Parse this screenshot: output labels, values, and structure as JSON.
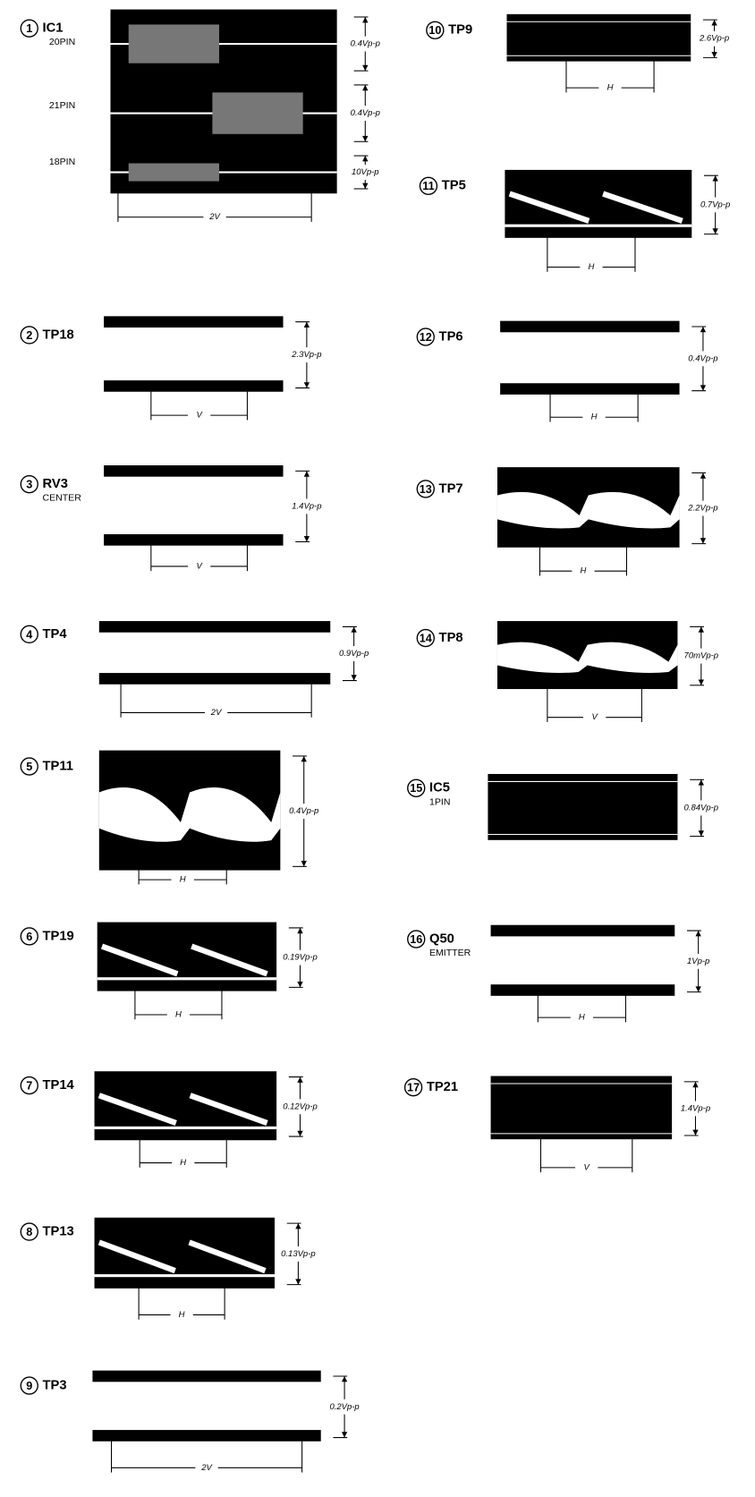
{
  "panels": [
    {
      "number": "1",
      "label": "IC1",
      "channels": [
        {
          "pin": "20PIN",
          "amplitude": "0.4Vp-p"
        },
        {
          "pin": "21PIN",
          "amplitude": "0.4Vp-p"
        },
        {
          "pin": "18PIN",
          "amplitude": "10Vp-p"
        }
      ],
      "span": "2V"
    },
    {
      "number": "2",
      "label": "TP18",
      "amplitude": "2.3Vp-p",
      "span": "V"
    },
    {
      "number": "3",
      "label": "RV3",
      "sublabel": "CENTER",
      "amplitude": "1.4Vp-p",
      "span": "V"
    },
    {
      "number": "4",
      "label": "TP4",
      "amplitude": "0.9Vp-p",
      "span": "2V"
    },
    {
      "number": "5",
      "label": "TP11",
      "amplitude": "0.4Vp-p",
      "span": "H"
    },
    {
      "number": "6",
      "label": "TP19",
      "amplitude": "0.19Vp-p",
      "span": "H"
    },
    {
      "number": "7",
      "label": "TP14",
      "amplitude": "0.12Vp-p",
      "span": "H"
    },
    {
      "number": "8",
      "label": "TP13",
      "amplitude": "0.13Vp-p",
      "span": "H"
    },
    {
      "number": "9",
      "label": "TP3",
      "amplitude": "0.2Vp-p",
      "span": "2V"
    },
    {
      "number": "10",
      "label": "TP9",
      "amplitude": "2.6Vp-p",
      "span": "H"
    },
    {
      "number": "11",
      "label": "TP5",
      "amplitude": "0.7Vp-p",
      "span": "H"
    },
    {
      "number": "12",
      "label": "TP6",
      "amplitude": "0.4Vp-p",
      "span": "H"
    },
    {
      "number": "13",
      "label": "TP7",
      "amplitude": "2.2Vp-p",
      "span": "H"
    },
    {
      "number": "14",
      "label": "TP8",
      "amplitude": "70mVp-p",
      "span": "V"
    },
    {
      "number": "15",
      "label": "IC5",
      "sublabel": "1PIN",
      "amplitude": "0.84Vp-p"
    },
    {
      "number": "16",
      "label": "Q50",
      "sublabel": "EMITTER",
      "amplitude": "1Vp-p",
      "span": "H"
    },
    {
      "number": "17",
      "label": "TP21",
      "amplitude": "1.4Vp-p",
      "span": "V"
    }
  ]
}
